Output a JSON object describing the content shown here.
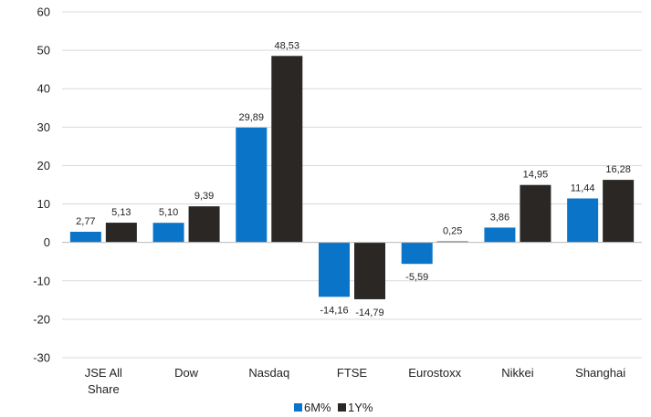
{
  "chart_data": {
    "type": "bar",
    "categories": [
      [
        "JSE All",
        "Share"
      ],
      [
        "Dow"
      ],
      [
        "Nasdaq"
      ],
      [
        "FTSE"
      ],
      [
        "Eurostoxx"
      ],
      [
        "Nikkei"
      ],
      [
        "Shanghai"
      ]
    ],
    "series": [
      {
        "name": "6M%",
        "color": "#0a74c9",
        "values": [
          2.77,
          5.1,
          29.89,
          -14.16,
          -5.59,
          3.86,
          11.44
        ],
        "labels": [
          "2,77",
          "5,10",
          "29,89",
          "-14,16",
          "-5,59",
          "3,86",
          "11,44"
        ]
      },
      {
        "name": "1Y%",
        "color": "#2a2725",
        "values": [
          5.13,
          9.39,
          48.53,
          -14.79,
          0.25,
          14.95,
          16.28
        ],
        "labels": [
          "5,13",
          "9,39",
          "48,53",
          "-14,79",
          "0,25",
          "14,95",
          "16,28"
        ]
      }
    ],
    "yticks": [
      "60",
      "50",
      "40",
      "30",
      "20",
      "10",
      "0",
      "-10",
      "-20",
      "-30"
    ],
    "ylim": [
      -30,
      60
    ],
    "grid": true,
    "legend_position": "bottom"
  }
}
